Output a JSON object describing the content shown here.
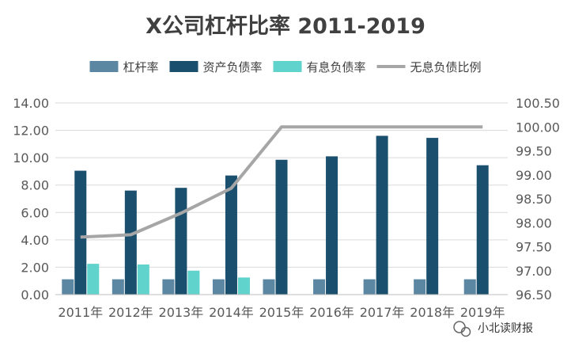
{
  "chart_data": {
    "type": "bar",
    "title": "X公司杠杆比率 2011-2019",
    "categories": [
      "2011年",
      "2012年",
      "2013年",
      "2014年",
      "2015年",
      "2016年",
      "2017年",
      "2018年",
      "2019年"
    ],
    "series": [
      {
        "name": "杠杆率",
        "kind": "bar",
        "axis": "left",
        "color": "#5b87a3",
        "values": [
          1.12,
          1.12,
          1.12,
          1.12,
          1.12,
          1.12,
          1.12,
          1.12,
          1.12
        ]
      },
      {
        "name": "资产负债率",
        "kind": "bar",
        "axis": "left",
        "color": "#1a4f6e",
        "values": [
          9.05,
          7.6,
          7.8,
          8.7,
          9.85,
          10.1,
          11.6,
          11.45,
          9.45
        ]
      },
      {
        "name": "有息负债率",
        "kind": "bar",
        "axis": "left",
        "color": "#5fd3cc",
        "values": [
          2.25,
          2.2,
          1.75,
          1.25,
          0,
          0,
          0,
          0,
          0
        ]
      },
      {
        "name": "无息负债比例",
        "kind": "line",
        "axis": "right",
        "color": "#a6a6a6",
        "values": [
          97.7,
          97.75,
          98.2,
          98.72,
          100.0,
          100.0,
          100.0,
          100.0,
          100.0
        ]
      }
    ],
    "left_axis": {
      "min": 0,
      "max": 14,
      "step": 2,
      "decimals": 2
    },
    "right_axis": {
      "min": 96.5,
      "max": 100.5,
      "step": 0.5,
      "decimals": 2
    },
    "grid": true,
    "legend_position": "top"
  },
  "watermark": {
    "text": "小北读财报",
    "icon": "wechat-icon"
  }
}
